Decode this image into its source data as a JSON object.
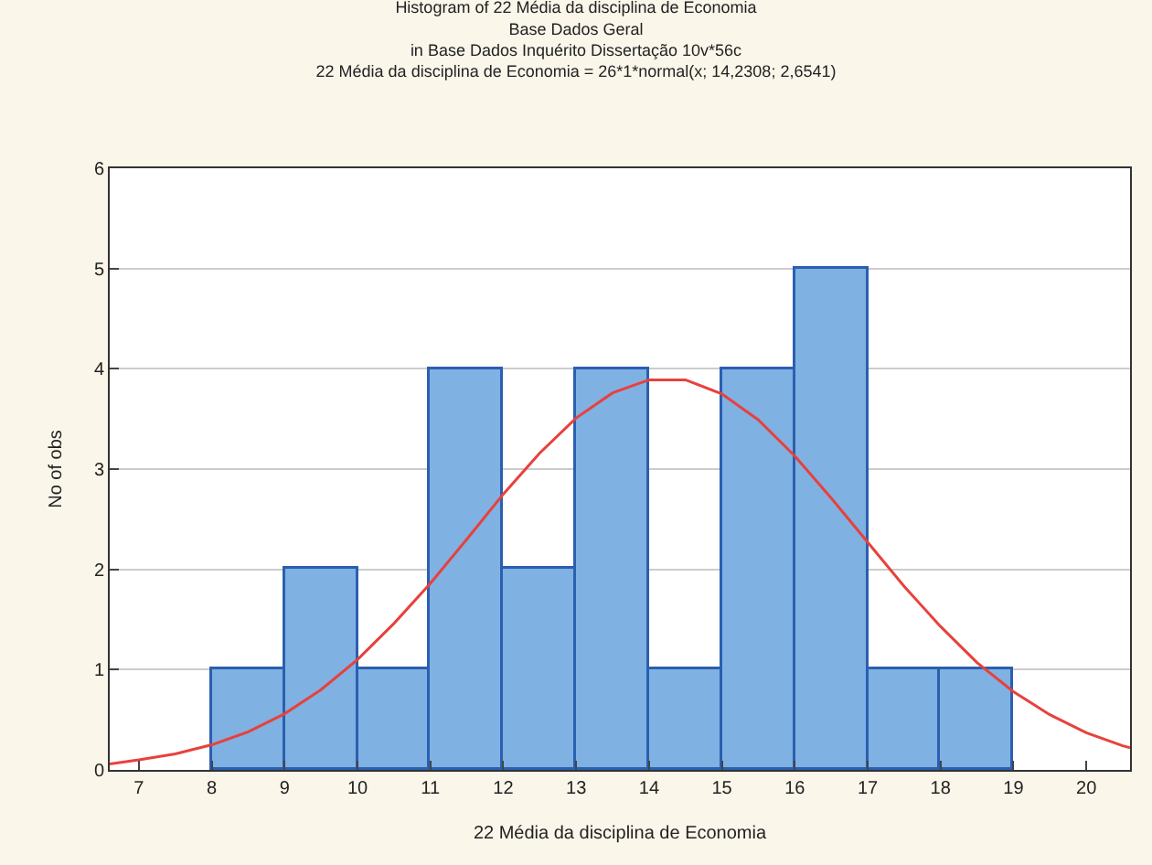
{
  "chart_data": {
    "type": "histogram",
    "title": "Histogram of 22 Média da disciplina de Economia",
    "subtitle": "Base Dados Geral\nin Base Dados Inquérito Dissertação 10v*56c\n22 Média da disciplina de Economia = 26*1*normal(x; 14,2308; 2,6541)",
    "xlabel": "22 Média da disciplina de Economia",
    "ylabel": "No of obs",
    "bins": [
      8,
      9,
      10,
      11,
      12,
      13,
      14,
      15,
      16,
      17,
      18,
      19
    ],
    "values": [
      1,
      2,
      1,
      4,
      2,
      4,
      1,
      4,
      5,
      1,
      1
    ],
    "color": "#7fb1e3",
    "series": [
      {
        "type": "line",
        "color": "#e8413c",
        "x": [
          6.6,
          7,
          7.5,
          8,
          8.5,
          9,
          9.5,
          10,
          10.5,
          11,
          11.5,
          12,
          12.5,
          13,
          13.5,
          14,
          14.5,
          15,
          15.5,
          16,
          16.5,
          17,
          17.5,
          18,
          18.5,
          19,
          19.5,
          20,
          20.5,
          20.6
        ],
        "values": [
          0.06,
          0.1,
          0.16,
          0.25,
          0.38,
          0.56,
          0.8,
          1.1,
          1.46,
          1.86,
          2.3,
          2.75,
          3.16,
          3.51,
          3.76,
          3.89,
          3.89,
          3.75,
          3.49,
          3.13,
          2.71,
          2.27,
          1.83,
          1.43,
          1.07,
          0.78,
          0.55,
          0.37,
          0.24,
          0.22
        ]
      }
    ],
    "xlim": [
      6.6,
      20.6
    ],
    "xticks": [
      7,
      8,
      9,
      10,
      11,
      12,
      13,
      14,
      15,
      16,
      17,
      18,
      19,
      20
    ],
    "ylim": [
      0,
      6
    ],
    "yticks": [
      0,
      1,
      2,
      3,
      4,
      5,
      6
    ],
    "grid": "y",
    "marker": "none",
    "line_style": "solid"
  }
}
